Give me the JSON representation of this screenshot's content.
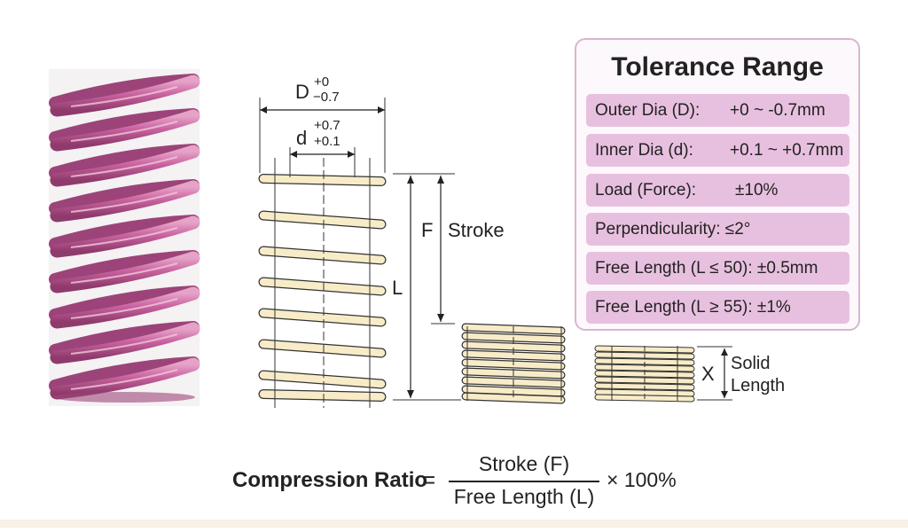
{
  "drawing": {
    "outer_dia_symbol": "D",
    "outer_dia_tol_upper": "+0",
    "outer_dia_tol_lower": "−0.7",
    "inner_dia_symbol": "d",
    "inner_dia_tol_upper": "+0.7",
    "inner_dia_tol_lower": "+0.1",
    "stroke_symbol": "F",
    "stroke_label": "Stroke",
    "free_length_symbol": "L",
    "solid_symbol": "X",
    "solid_label_line1": "Solid",
    "solid_label_line2": "Length"
  },
  "tolerance": {
    "title": "Tolerance Range",
    "rows": [
      {
        "label": "Outer Dia (D):",
        "value": "+0 ~ -0.7mm"
      },
      {
        "label": "Inner Dia (d):",
        "value": "+0.1 ~ +0.7mm"
      },
      {
        "label": "Load (Force):",
        "value": "±10%"
      },
      {
        "label": "Perpendicularity: ≤2°",
        "value": ""
      },
      {
        "label": "Free Length (L ≤ 50): ±0.5mm",
        "value": ""
      },
      {
        "label": "Free Length (L ≥ 55): ±1%",
        "value": ""
      }
    ]
  },
  "formula": {
    "lhs": "Compression Ratio",
    "equals": "=",
    "numerator": "Stroke (F)",
    "denominator": "Free Length (L)",
    "multiplier": "× 100%"
  },
  "colors": {
    "spring_pink": "#c9639f",
    "coil_fill": "#f8ecc8",
    "panel_row": "#e8c0df",
    "panel_border": "#d8b6cf"
  }
}
